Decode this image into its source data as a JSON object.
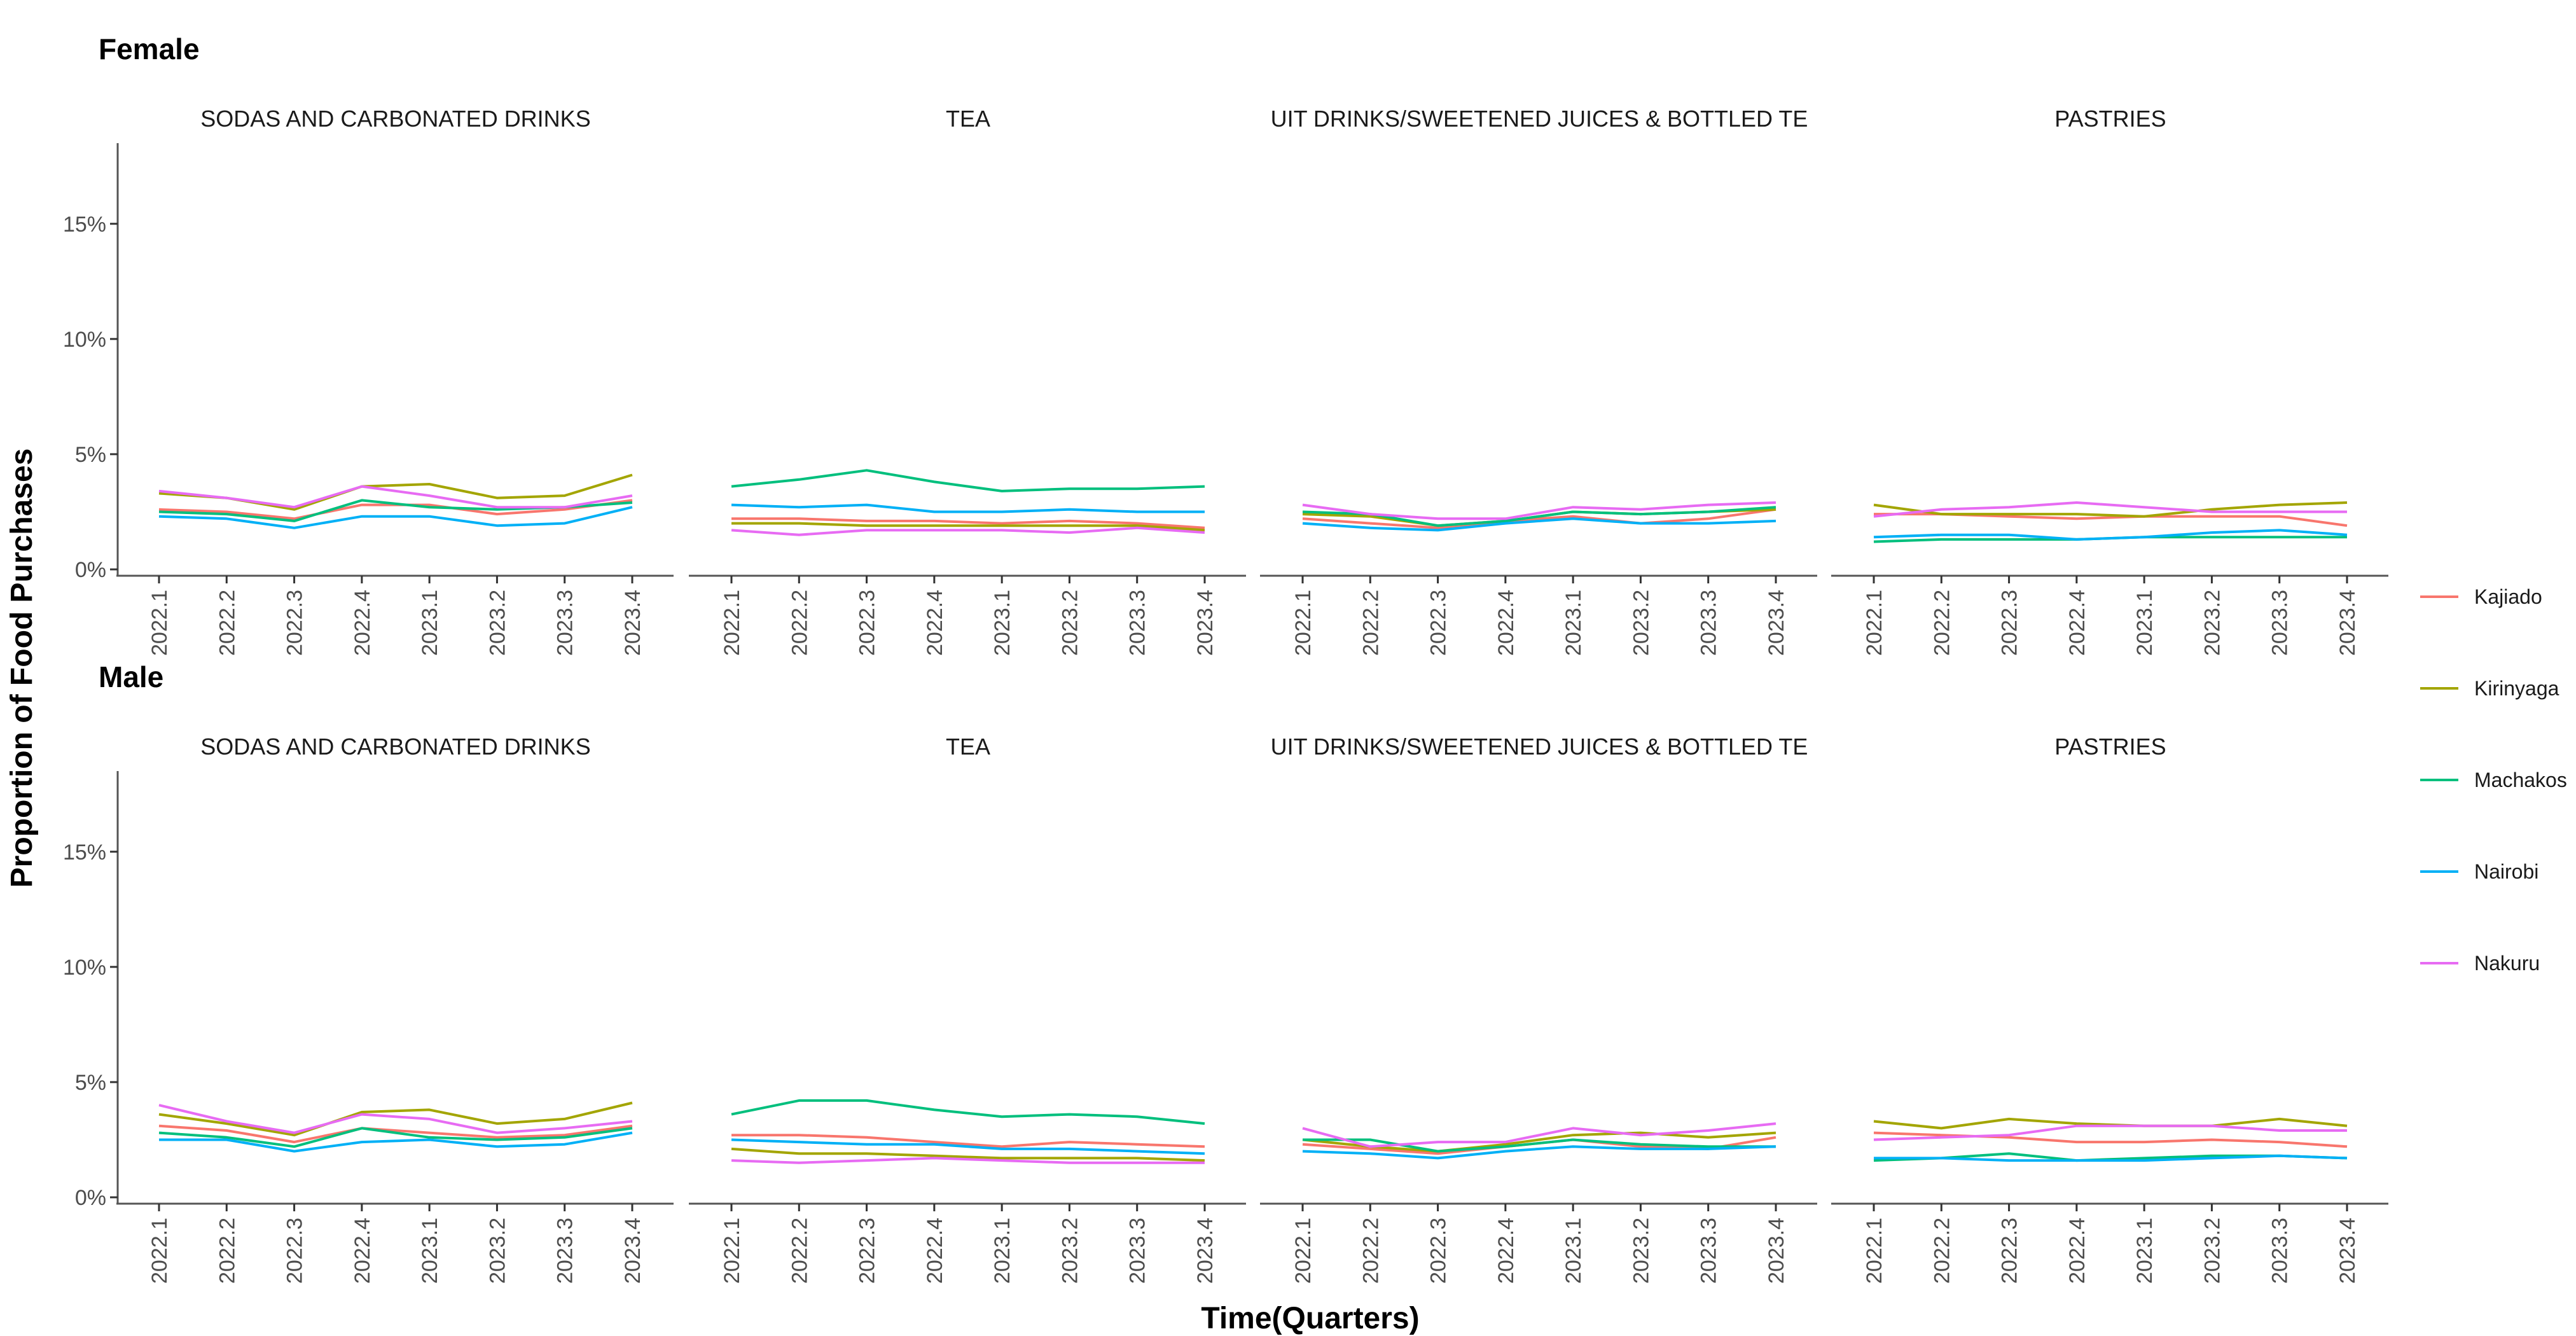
{
  "chart_data": {
    "type": "line",
    "xlabel": "Time(Quarters)",
    "ylabel": "Proportion of Food Purchases",
    "ylim": [
      0,
      0.185
    ],
    "y_ticks": [
      0,
      0.05,
      0.1,
      0.15
    ],
    "y_tick_labels": [
      "0%",
      "5%",
      "10%",
      "15%"
    ],
    "x": [
      "2022.1",
      "2022.2",
      "2022.3",
      "2022.4",
      "2023.1",
      "2023.2",
      "2023.3",
      "2023.4"
    ],
    "grid": false,
    "legend_position": "right",
    "legend": [
      {
        "name": "Kajiado",
        "color": "#F8766D"
      },
      {
        "name": "Kirinyaga",
        "color": "#A3A500"
      },
      {
        "name": "Machakos",
        "color": "#00BF7D"
      },
      {
        "name": "Nairobi",
        "color": "#00B0F6"
      },
      {
        "name": "Nakuru",
        "color": "#E76BF3"
      }
    ],
    "facet_titles": [
      "SODAS AND CARBONATED DRINKS",
      "TEA",
      "UIT DRINKS/SWEETENED JUICES & BOTTLED TE",
      "PASTRIES"
    ],
    "groups": [
      {
        "label": "Female",
        "facets": [
          {
            "series": [
              {
                "values": [
                  0.026,
                  0.025,
                  0.022,
                  0.028,
                  0.028,
                  0.024,
                  0.026,
                  0.03
                ]
              },
              {
                "values": [
                  0.033,
                  0.031,
                  0.026,
                  0.036,
                  0.037,
                  0.031,
                  0.032,
                  0.041
                ]
              },
              {
                "values": [
                  0.025,
                  0.024,
                  0.021,
                  0.03,
                  0.027,
                  0.026,
                  0.027,
                  0.029
                ]
              },
              {
                "values": [
                  0.023,
                  0.022,
                  0.018,
                  0.023,
                  0.023,
                  0.019,
                  0.02,
                  0.027
                ]
              },
              {
                "values": [
                  0.034,
                  0.031,
                  0.027,
                  0.036,
                  0.032,
                  0.027,
                  0.027,
                  0.032
                ]
              }
            ]
          },
          {
            "series": [
              {
                "values": [
                  0.022,
                  0.022,
                  0.021,
                  0.021,
                  0.02,
                  0.021,
                  0.02,
                  0.018
                ]
              },
              {
                "values": [
                  0.02,
                  0.02,
                  0.019,
                  0.019,
                  0.019,
                  0.019,
                  0.019,
                  0.017
                ]
              },
              {
                "values": [
                  0.036,
                  0.039,
                  0.043,
                  0.038,
                  0.034,
                  0.035,
                  0.035,
                  0.036
                ]
              },
              {
                "values": [
                  0.028,
                  0.027,
                  0.028,
                  0.025,
                  0.025,
                  0.026,
                  0.025,
                  0.025
                ]
              },
              {
                "values": [
                  0.017,
                  0.015,
                  0.017,
                  0.017,
                  0.017,
                  0.016,
                  0.018,
                  0.016
                ]
              }
            ]
          },
          {
            "series": [
              {
                "values": [
                  0.022,
                  0.02,
                  0.018,
                  0.021,
                  0.023,
                  0.02,
                  0.022,
                  0.026
                ]
              },
              {
                "values": [
                  0.024,
                  0.023,
                  0.019,
                  0.021,
                  0.025,
                  0.024,
                  0.025,
                  0.026
                ]
              },
              {
                "values": [
                  0.025,
                  0.024,
                  0.019,
                  0.021,
                  0.025,
                  0.024,
                  0.025,
                  0.027
                ]
              },
              {
                "values": [
                  0.02,
                  0.018,
                  0.017,
                  0.02,
                  0.022,
                  0.02,
                  0.02,
                  0.021
                ]
              },
              {
                "values": [
                  0.028,
                  0.024,
                  0.022,
                  0.022,
                  0.027,
                  0.026,
                  0.028,
                  0.029
                ]
              }
            ]
          },
          {
            "series": [
              {
                "values": [
                  0.024,
                  0.024,
                  0.023,
                  0.022,
                  0.023,
                  0.023,
                  0.023,
                  0.019
                ]
              },
              {
                "values": [
                  0.028,
                  0.024,
                  0.024,
                  0.024,
                  0.023,
                  0.026,
                  0.028,
                  0.029
                ]
              },
              {
                "values": [
                  0.012,
                  0.013,
                  0.013,
                  0.013,
                  0.014,
                  0.014,
                  0.014,
                  0.014
                ]
              },
              {
                "values": [
                  0.014,
                  0.015,
                  0.015,
                  0.013,
                  0.014,
                  0.016,
                  0.017,
                  0.015
                ]
              },
              {
                "values": [
                  0.023,
                  0.026,
                  0.027,
                  0.029,
                  0.027,
                  0.025,
                  0.025,
                  0.025
                ]
              }
            ]
          }
        ]
      },
      {
        "label": "Male",
        "facets": [
          {
            "series": [
              {
                "values": [
                  0.031,
                  0.029,
                  0.024,
                  0.03,
                  0.028,
                  0.026,
                  0.027,
                  0.031
                ]
              },
              {
                "values": [
                  0.036,
                  0.032,
                  0.027,
                  0.037,
                  0.038,
                  0.032,
                  0.034,
                  0.041
                ]
              },
              {
                "values": [
                  0.028,
                  0.026,
                  0.022,
                  0.03,
                  0.026,
                  0.025,
                  0.026,
                  0.03
                ]
              },
              {
                "values": [
                  0.025,
                  0.025,
                  0.02,
                  0.024,
                  0.025,
                  0.022,
                  0.023,
                  0.028
                ]
              },
              {
                "values": [
                  0.04,
                  0.033,
                  0.028,
                  0.036,
                  0.034,
                  0.028,
                  0.03,
                  0.033
                ]
              }
            ]
          },
          {
            "series": [
              {
                "values": [
                  0.027,
                  0.027,
                  0.026,
                  0.024,
                  0.022,
                  0.024,
                  0.023,
                  0.022
                ]
              },
              {
                "values": [
                  0.021,
                  0.019,
                  0.019,
                  0.018,
                  0.017,
                  0.017,
                  0.017,
                  0.016
                ]
              },
              {
                "values": [
                  0.036,
                  0.042,
                  0.042,
                  0.038,
                  0.035,
                  0.036,
                  0.035,
                  0.032
                ]
              },
              {
                "values": [
                  0.025,
                  0.024,
                  0.023,
                  0.023,
                  0.021,
                  0.021,
                  0.02,
                  0.019
                ]
              },
              {
                "values": [
                  0.016,
                  0.015,
                  0.016,
                  0.017,
                  0.016,
                  0.015,
                  0.015,
                  0.015
                ]
              }
            ]
          },
          {
            "series": [
              {
                "values": [
                  0.023,
                  0.021,
                  0.019,
                  0.022,
                  0.025,
                  0.022,
                  0.021,
                  0.026
                ]
              },
              {
                "values": [
                  0.025,
                  0.022,
                  0.02,
                  0.023,
                  0.027,
                  0.028,
                  0.026,
                  0.028
                ]
              },
              {
                "values": [
                  0.025,
                  0.025,
                  0.02,
                  0.022,
                  0.025,
                  0.023,
                  0.022,
                  0.022
                ]
              },
              {
                "values": [
                  0.02,
                  0.019,
                  0.017,
                  0.02,
                  0.022,
                  0.021,
                  0.021,
                  0.022
                ]
              },
              {
                "values": [
                  0.03,
                  0.022,
                  0.024,
                  0.024,
                  0.03,
                  0.027,
                  0.029,
                  0.032
                ]
              }
            ]
          },
          {
            "series": [
              {
                "values": [
                  0.028,
                  0.027,
                  0.026,
                  0.024,
                  0.024,
                  0.025,
                  0.024,
                  0.022
                ]
              },
              {
                "values": [
                  0.033,
                  0.03,
                  0.034,
                  0.032,
                  0.031,
                  0.031,
                  0.034,
                  0.031
                ]
              },
              {
                "values": [
                  0.016,
                  0.017,
                  0.019,
                  0.016,
                  0.017,
                  0.018,
                  0.018,
                  0.017
                ]
              },
              {
                "values": [
                  0.017,
                  0.017,
                  0.016,
                  0.016,
                  0.016,
                  0.017,
                  0.018,
                  0.017
                ]
              },
              {
                "values": [
                  0.025,
                  0.026,
                  0.027,
                  0.031,
                  0.031,
                  0.031,
                  0.029,
                  0.029
                ]
              }
            ]
          }
        ]
      }
    ]
  }
}
